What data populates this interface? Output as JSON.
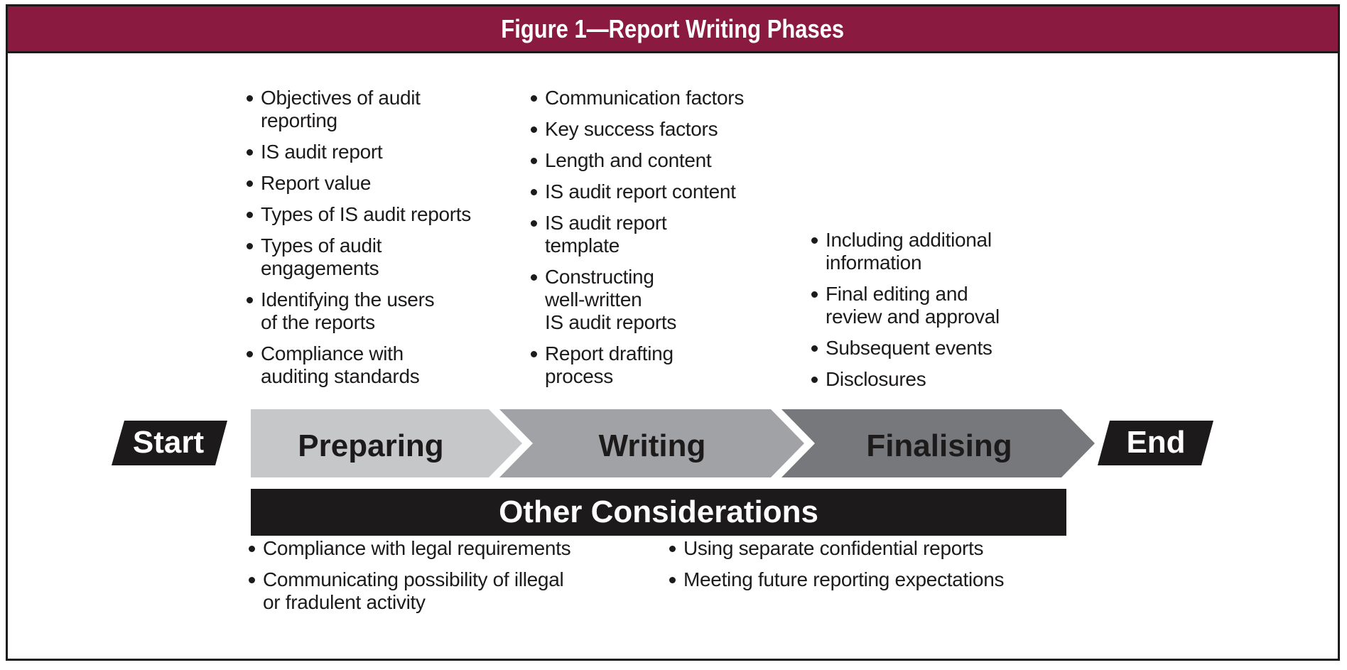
{
  "title": "Figure 1—Report Writing Phases",
  "start_label": "Start",
  "end_label": "End",
  "phases": [
    {
      "label": "Preparing",
      "color": "#c6c7c9",
      "items": [
        "Objectives of audit\nreporting",
        "IS audit report",
        "Report value",
        "Types of IS audit reports",
        "Types of audit\nengagements",
        "Identifying the users\nof the reports",
        "Compliance with\nauditing standards"
      ]
    },
    {
      "label": "Writing",
      "color": "#a1a2a5",
      "items": [
        "Communication factors",
        "Key success factors",
        "Length and content",
        "IS audit report content",
        "IS audit report\ntemplate",
        "Constructing\nwell-written\nIS audit reports",
        "Report drafting\nprocess"
      ]
    },
    {
      "label": "Finalising",
      "color": "#77787b",
      "items": [
        "Including additional\ninformation",
        "Final editing and\nreview and approval",
        "Subsequent events",
        "Disclosures"
      ]
    }
  ],
  "other_considerations": {
    "title": "Other Considerations",
    "left_items": [
      "Compliance with legal requirements",
      "Communicating possibility of illegal\nor fradulent activity"
    ],
    "right_items": [
      "Using separate confidential reports",
      "Meeting future reporting expectations"
    ]
  },
  "colors": {
    "title_bar": "#8b1a40",
    "dark": "#1c1a1a"
  }
}
